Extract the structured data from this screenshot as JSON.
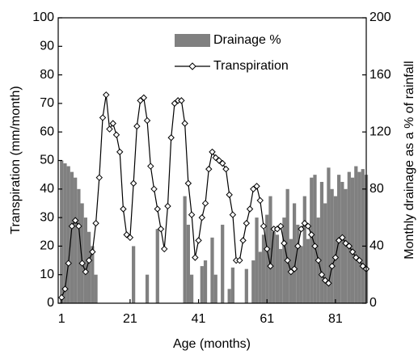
{
  "chart_data": {
    "type": "bar_line",
    "xlabel": "Age (months)",
    "ylabel": "Transpiration (mm/month)",
    "y2label": "Monthly drainage as a % of rainfall",
    "x": [
      1,
      2,
      3,
      4,
      5,
      6,
      7,
      8,
      9,
      10,
      11,
      12,
      13,
      14,
      15,
      16,
      17,
      18,
      19,
      20,
      21,
      22,
      23,
      24,
      25,
      26,
      27,
      28,
      29,
      30,
      31,
      32,
      33,
      34,
      35,
      36,
      37,
      38,
      39,
      40,
      41,
      42,
      43,
      44,
      45,
      46,
      47,
      48,
      49,
      50,
      51,
      52,
      53,
      54,
      55,
      56,
      57,
      58,
      59,
      60,
      61,
      62,
      63,
      64,
      65,
      66,
      67,
      68,
      69,
      70,
      71,
      72,
      73,
      74,
      75,
      76,
      77,
      78,
      79,
      80,
      81,
      82,
      83,
      84,
      85,
      86,
      87,
      88,
      89,
      90
    ],
    "series": [
      {
        "name": "Drainage %",
        "kind": "bar",
        "axis": "y2",
        "color": "#808080",
        "values": [
          100,
          98,
          96,
          92,
          88,
          80,
          70,
          60,
          50,
          40,
          20,
          0,
          0,
          0,
          0,
          0,
          0,
          0,
          0,
          0,
          0,
          40,
          0,
          0,
          0,
          20,
          0,
          0,
          52,
          0,
          0,
          0,
          0,
          0,
          0,
          0,
          75,
          55,
          20,
          0,
          0,
          26,
          30,
          0,
          46,
          20,
          0,
          55,
          0,
          10,
          25,
          0,
          0,
          0,
          24,
          0,
          30,
          60,
          36,
          48,
          62,
          75,
          50,
          48,
          38,
          60,
          80,
          45,
          70,
          55,
          40,
          75,
          45,
          88,
          90,
          60,
          85,
          70,
          95,
          80,
          75,
          90,
          85,
          80,
          92,
          88,
          96,
          92,
          94,
          90
        ]
      },
      {
        "name": "Transpiration",
        "kind": "line",
        "color": "#000000",
        "values": [
          2,
          5,
          14,
          27,
          29,
          27,
          14,
          11,
          15,
          18,
          28,
          44,
          65,
          73,
          61,
          63,
          59,
          53,
          33,
          24,
          23,
          42,
          62,
          71,
          72,
          64,
          48,
          40,
          33,
          26,
          19,
          34,
          58,
          70,
          71,
          71,
          63,
          42,
          31,
          16,
          22,
          30,
          35,
          47,
          53,
          51,
          50,
          49,
          47,
          38,
          31,
          15,
          15,
          22,
          28,
          33,
          40,
          41,
          36,
          27,
          19,
          13,
          26,
          26,
          27,
          21,
          15,
          11,
          12,
          20,
          26,
          28,
          27,
          24,
          20,
          15,
          10,
          8,
          7,
          13,
          16,
          22,
          23,
          21,
          20,
          18,
          16,
          15,
          13,
          12
        ]
      }
    ],
    "xlim": [
      0,
      90
    ],
    "xticks": [
      1,
      21,
      41,
      61,
      81
    ],
    "ylim": [
      0,
      100
    ],
    "yticks": [
      0,
      10,
      20,
      30,
      40,
      50,
      60,
      70,
      80,
      90,
      100
    ],
    "y2lim": [
      0,
      200
    ],
    "y2ticks": [
      0,
      40,
      80,
      120,
      160,
      200
    ],
    "legend": "upper right"
  }
}
